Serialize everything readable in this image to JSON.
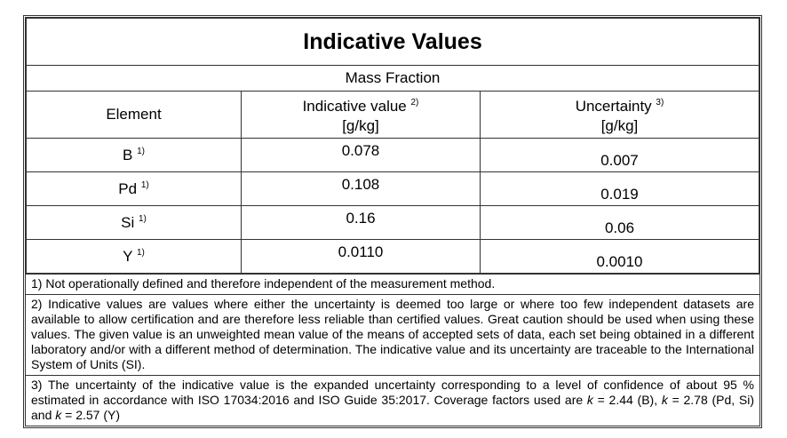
{
  "title": "Indicative Values",
  "subtitle": "Mass Fraction",
  "table": {
    "headers": [
      {
        "text": "Element"
      },
      {
        "text": "Indicative value",
        "note": "2)",
        "unit": "[g/kg]"
      },
      {
        "text": "Uncertainty",
        "note": "3)",
        "unit": "[g/kg]"
      }
    ],
    "rows": [
      {
        "element": "B",
        "note": "1)",
        "value": "0.078",
        "uncertainty": "0.007"
      },
      {
        "element": "Pd",
        "note": "1)",
        "value": "0.108",
        "uncertainty": "0.019"
      },
      {
        "element": "Si",
        "note": "1)",
        "value": "0.16",
        "uncertainty": "0.06"
      },
      {
        "element": "Y",
        "note": "1)",
        "value": "0.0110",
        "uncertainty": "0.0010"
      }
    ]
  },
  "footnotes": [
    [
      "1) Not operationally defined and therefore independent of the measurement method."
    ],
    [
      "2) Indicative values are values where either the uncertainty is deemed too large or where too few independent datasets are available to allow certification and are therefore less reliable than certified values. Great caution should be used when using these values. The given value is an unweighted mean value of the means of accepted sets of data, each set being obtained in a different laboratory and/or with a different method of determination. The indicative value and its uncertainty are traceable to the International System of Units (SI)."
    ],
    [
      "3) The uncertainty of the indicative value is the expanded uncertainty corresponding to a level of confidence of about 95 % estimated in accordance with ISO 17034:2016 and ISO Guide 35:2017. Coverage factors used are ",
      "k",
      " = 2.44 (B), ",
      "k",
      " = 2.78 (Pd, Si) and ",
      "k",
      " = 2.57 (Y)"
    ]
  ]
}
